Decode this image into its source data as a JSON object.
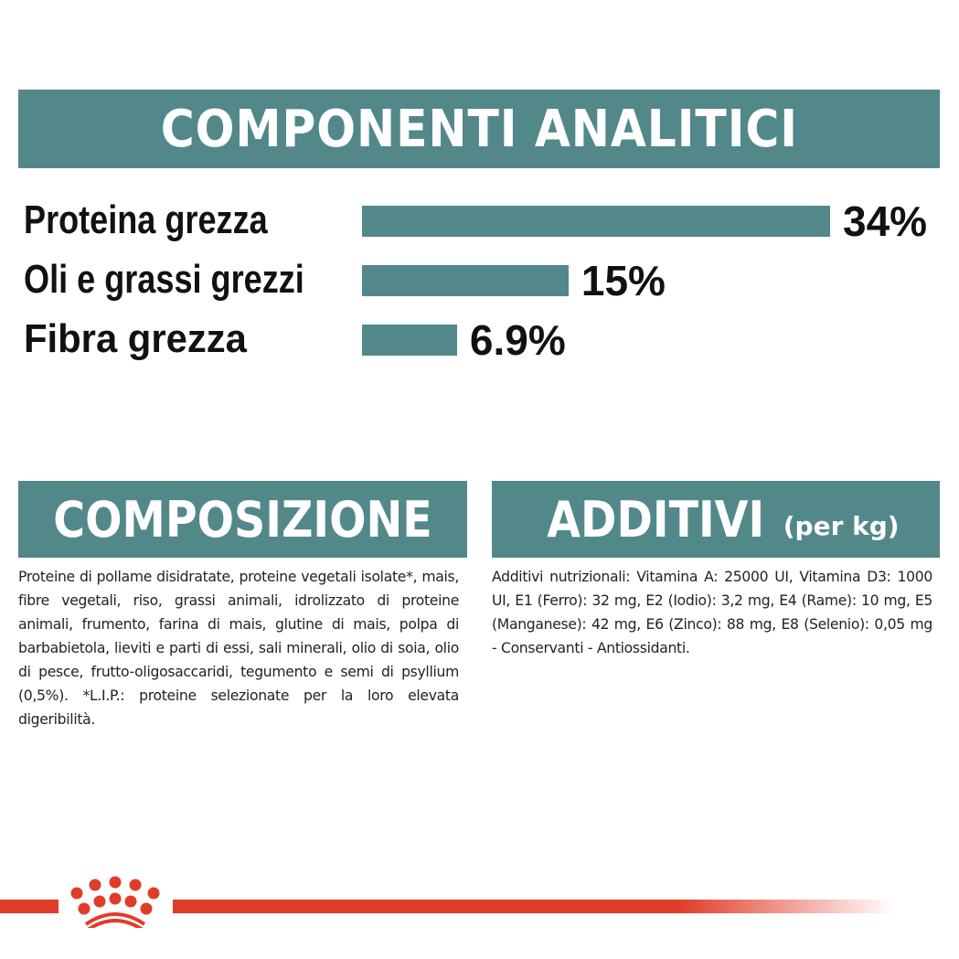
{
  "analytic_header": "COMPONENTI ANALITICI",
  "chart_data": {
    "type": "bar",
    "categories": [
      "Proteina grezza",
      "Oli e grassi grezzi",
      "Fibra grezza"
    ],
    "values": [
      34,
      15,
      6.9
    ],
    "value_labels": [
      "34%",
      "15%",
      "6.9%"
    ],
    "unit": "%",
    "orientation": "horizontal",
    "bar_color": "#52888a"
  },
  "composition": {
    "title": "COMPOSIZIONE",
    "text": "Proteine di pollame disidratate, proteine vegetali isolate*, mais, fibre vegetali, riso, grassi animali, idrolizzato di proteine animali, frumento, farina di mais, glutine di mais, polpa di barbabietola, lieviti e parti di essi, sali minerali, olio di soia, olio di pesce, frutto-oligosaccaridi, tegumento e semi di psyllium (0,5%). *L.I.P.: proteine selezionate per la loro elevata digeribilità."
  },
  "additives": {
    "title": "ADDITIVI",
    "title_suffix": "(per kg)",
    "text": "Additivi nutrizionali: Vitamina A: 25000 UI, Vitamina D3: 1000 UI, E1 (Ferro): 32 mg, E2 (Iodio): 3,2 mg, E4 (Rame): 10 mg, E5 (Manganese): 42 mg, E6 (Zinco): 88 mg, E8 (Selenio): 0,05 mg - Conservanti - Antiossidanti."
  },
  "colors": {
    "accent": "#52888a",
    "brand_red": "#e03c2a"
  },
  "logo": {
    "icon": "royal-canin-crown-icon"
  }
}
